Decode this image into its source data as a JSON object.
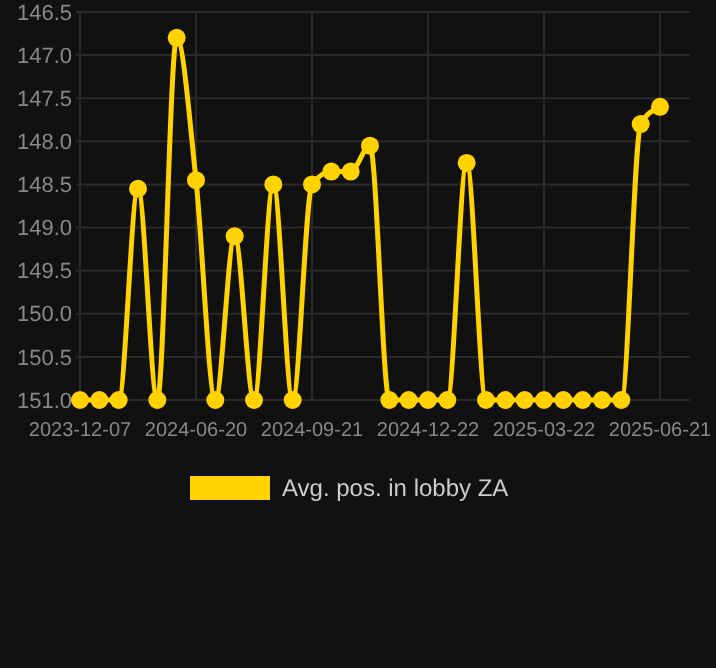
{
  "chart_data": {
    "type": "line",
    "categories": [
      "2023-12-07",
      null,
      null,
      null,
      null,
      null,
      "2024-06-20",
      null,
      null,
      null,
      null,
      null,
      "2024-09-21",
      null,
      null,
      null,
      null,
      null,
      "2024-12-22",
      null,
      null,
      null,
      null,
      null,
      "2025-03-22",
      null,
      null,
      null,
      null,
      null,
      "2025-06-21"
    ],
    "series": [
      {
        "name": "Avg. pos. in lobby ZA",
        "color": "#ffd200",
        "values": [
          151,
          151,
          151,
          148.55,
          151,
          146.8,
          148.45,
          151,
          149.1,
          151,
          148.5,
          151,
          148.5,
          148.35,
          148.35,
          148.05,
          151,
          151,
          151,
          151,
          148.25,
          151,
          151,
          151,
          151,
          151,
          151,
          151,
          151,
          147.8,
          147.6
        ]
      }
    ],
    "ylim": [
      151.0,
      146.5
    ],
    "yticks": [
      146.5,
      {
        "value": 147,
        "label": "147.0"
      },
      147.5,
      {
        "value": 148,
        "label": "148.0"
      },
      148.5,
      {
        "value": 149,
        "label": "149.0"
      },
      149.5,
      {
        "value": 150,
        "label": "150.0"
      },
      150.5,
      {
        "value": 151,
        "label": "151.0"
      }
    ],
    "grid": true,
    "legend": "bottom",
    "marker": "circle",
    "line_style": "solid"
  }
}
